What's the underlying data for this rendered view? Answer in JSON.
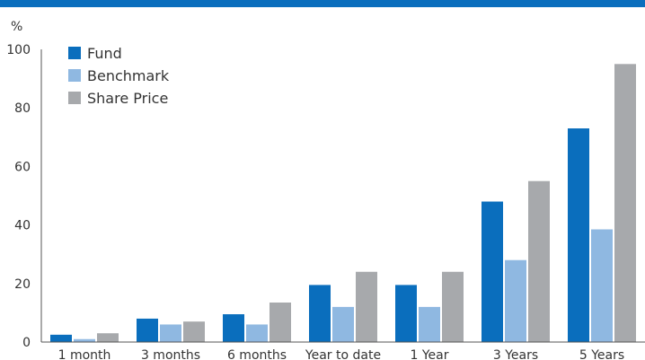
{
  "chart_data": {
    "type": "bar",
    "title": "",
    "xlabel": "",
    "ylabel": "%",
    "ylim": [
      0,
      100
    ],
    "yticks": [
      0,
      20,
      40,
      60,
      80,
      100
    ],
    "grid": false,
    "legend_position": "top-left",
    "categories": [
      "1 month",
      "3 months",
      "6 months",
      "Year to date",
      "1 Year",
      "3 Years",
      "5 Years"
    ],
    "series": [
      {
        "name": "Fund",
        "color": "#0a6ebd",
        "values": [
          2.5,
          8,
          9.5,
          19.5,
          19.5,
          48,
          73
        ]
      },
      {
        "name": "Benchmark",
        "color": "#8fb8e1",
        "values": [
          1,
          6,
          6,
          12,
          12,
          28,
          38.5
        ]
      },
      {
        "name": "Share Price",
        "color": "#a7a9ac",
        "values": [
          3,
          7,
          13.5,
          24,
          24,
          55,
          95
        ]
      }
    ]
  },
  "colors": {
    "header_bar": "#0a6ebd"
  }
}
